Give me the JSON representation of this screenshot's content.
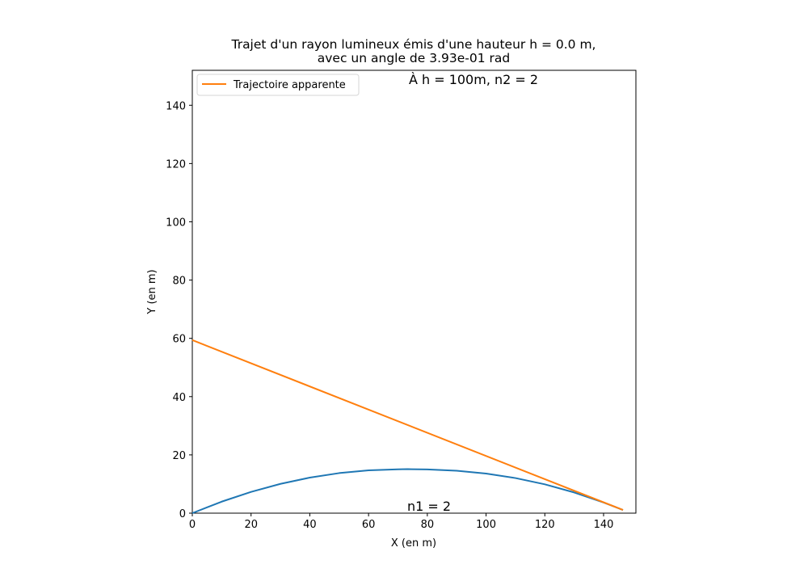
{
  "chart_data": {
    "type": "line",
    "title_line1": "Trajet d'un rayon lumineux émis d'une hauteur h = 0.0 m,",
    "title_line2": "avec un angle de 3.93e-01 rad",
    "xlabel": "X (en m)",
    "ylabel": "Y (en m)",
    "xlim": [
      0,
      151
    ],
    "ylim": [
      0,
      152
    ],
    "xticks": [
      0,
      20,
      40,
      60,
      80,
      100,
      120,
      140
    ],
    "yticks": [
      0,
      20,
      40,
      60,
      80,
      100,
      120,
      140
    ],
    "legend_position": "upper-left",
    "annotation_top": "À h = 100m, n2 = 2",
    "annotation_bottom": "n1 = 2",
    "series": [
      {
        "color": "#1f77b4",
        "x": [
          0,
          10,
          20,
          30,
          40,
          50,
          60,
          70,
          73.3,
          80,
          90,
          100,
          110,
          120,
          130,
          140,
          146.6
        ],
        "y": [
          0,
          3.95,
          7.3,
          10.05,
          12.2,
          13.75,
          14.7,
          15.05,
          15.1,
          15.0,
          14.55,
          13.6,
          12.05,
          9.9,
          7.1,
          3.65,
          1.1
        ]
      },
      {
        "name": "Trajectoire apparente",
        "color": "#ff7f0e",
        "x": [
          0,
          146.6
        ],
        "y": [
          59.4,
          1.1
        ]
      }
    ]
  }
}
